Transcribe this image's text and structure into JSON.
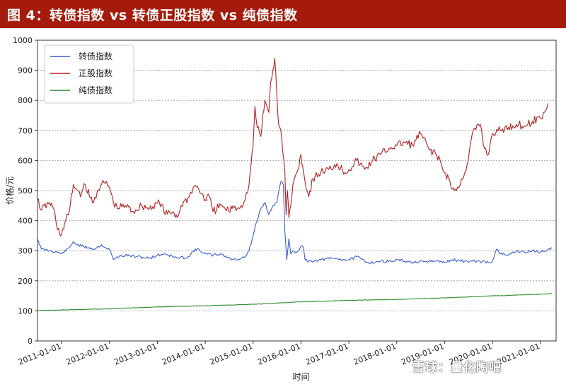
{
  "header": {
    "title": "图 4：转债指数 vs 转债正股指数 vs 纯债指数"
  },
  "watermark": {
    "text": "雪球：量化陶吧"
  },
  "chart_data": {
    "type": "line",
    "title": "图 4：转债指数 vs 转债正股指数 vs 纯债指数",
    "xlabel": "时间",
    "ylabel": "价格/元",
    "ylim": [
      0,
      1000
    ],
    "xlim": [
      "2010-07-01",
      "2021-05-01"
    ],
    "yticks": [
      0,
      100,
      200,
      300,
      400,
      500,
      600,
      700,
      800,
      900,
      1000
    ],
    "xticks": [
      "2011-01-01",
      "2012-01-01",
      "2013-01-01",
      "2014-01-01",
      "2015-01-01",
      "2016-01-01",
      "2017-01-01",
      "2018-01-01",
      "2019-01-01",
      "2020-01-01",
      "2021-01-01"
    ],
    "grid": true,
    "legend_position": "top-left",
    "series": [
      {
        "name": "转债指数",
        "color": "#3b5fd4",
        "points": [
          [
            "2010-07-01",
            340
          ],
          [
            "2010-08-01",
            305
          ],
          [
            "2010-10-01",
            300
          ],
          [
            "2010-12-01",
            295
          ],
          [
            "2011-01-01",
            290
          ],
          [
            "2011-03-01",
            310
          ],
          [
            "2011-04-01",
            330
          ],
          [
            "2011-05-01",
            320
          ],
          [
            "2011-06-01",
            315
          ],
          [
            "2011-08-01",
            310
          ],
          [
            "2011-09-01",
            305
          ],
          [
            "2011-11-01",
            320
          ],
          [
            "2011-12-01",
            310
          ],
          [
            "2012-01-01",
            305
          ],
          [
            "2012-02-01",
            270
          ],
          [
            "2012-03-01",
            280
          ],
          [
            "2012-05-01",
            285
          ],
          [
            "2012-08-01",
            280
          ],
          [
            "2012-11-01",
            275
          ],
          [
            "2013-01-01",
            285
          ],
          [
            "2013-03-01",
            290
          ],
          [
            "2013-06-01",
            275
          ],
          [
            "2013-09-01",
            280
          ],
          [
            "2013-10-01",
            300
          ],
          [
            "2013-11-01",
            305
          ],
          [
            "2014-01-01",
            290
          ],
          [
            "2014-03-01",
            285
          ],
          [
            "2014-05-01",
            290
          ],
          [
            "2014-07-01",
            275
          ],
          [
            "2014-08-01",
            270
          ],
          [
            "2014-10-01",
            275
          ],
          [
            "2014-11-01",
            280
          ],
          [
            "2014-12-01",
            300
          ],
          [
            "2015-01-01",
            350
          ],
          [
            "2015-02-01",
            400
          ],
          [
            "2015-03-01",
            440
          ],
          [
            "2015-04-01",
            460
          ],
          [
            "2015-05-01",
            420
          ],
          [
            "2015-06-01",
            450
          ],
          [
            "2015-07-01",
            460
          ],
          [
            "2015-08-01",
            530
          ],
          [
            "2015-08-20",
            520
          ],
          [
            "2015-09-01",
            360
          ],
          [
            "2015-09-15",
            270
          ],
          [
            "2015-10-01",
            340
          ],
          [
            "2015-10-15",
            290
          ],
          [
            "2015-11-01",
            300
          ],
          [
            "2015-12-01",
            295
          ],
          [
            "2016-01-01",
            315
          ],
          [
            "2016-01-20",
            310
          ],
          [
            "2016-02-01",
            270
          ],
          [
            "2016-03-01",
            265
          ],
          [
            "2016-06-01",
            270
          ],
          [
            "2016-09-01",
            275
          ],
          [
            "2016-12-01",
            270
          ],
          [
            "2017-01-01",
            270
          ],
          [
            "2017-03-01",
            280
          ],
          [
            "2017-06-01",
            260
          ],
          [
            "2017-09-01",
            265
          ],
          [
            "2017-12-01",
            265
          ],
          [
            "2018-01-01",
            270
          ],
          [
            "2018-03-01",
            265
          ],
          [
            "2018-06-01",
            260
          ],
          [
            "2018-09-01",
            265
          ],
          [
            "2018-12-01",
            265
          ],
          [
            "2019-01-01",
            260
          ],
          [
            "2019-03-01",
            270
          ],
          [
            "2019-06-01",
            265
          ],
          [
            "2019-09-01",
            265
          ],
          [
            "2019-12-01",
            262
          ],
          [
            "2020-01-01",
            265
          ],
          [
            "2020-02-01",
            305
          ],
          [
            "2020-03-01",
            290
          ],
          [
            "2020-05-01",
            285
          ],
          [
            "2020-07-01",
            300
          ],
          [
            "2020-09-01",
            295
          ],
          [
            "2020-11-01",
            300
          ],
          [
            "2021-01-01",
            295
          ],
          [
            "2021-03-01",
            305
          ],
          [
            "2021-04-01",
            310
          ]
        ]
      },
      {
        "name": "正股指数",
        "color": "#b51f1f",
        "points": [
          [
            "2010-07-01",
            470
          ],
          [
            "2010-08-01",
            435
          ],
          [
            "2010-10-01",
            460
          ],
          [
            "2010-11-01",
            440
          ],
          [
            "2010-12-01",
            370
          ],
          [
            "2011-01-01",
            355
          ],
          [
            "2011-02-01",
            400
          ],
          [
            "2011-03-01",
            430
          ],
          [
            "2011-04-01",
            520
          ],
          [
            "2011-05-01",
            500
          ],
          [
            "2011-06-01",
            490
          ],
          [
            "2011-07-01",
            520
          ],
          [
            "2011-08-01",
            480
          ],
          [
            "2011-09-01",
            460
          ],
          [
            "2011-10-01",
            500
          ],
          [
            "2011-11-01",
            520
          ],
          [
            "2011-12-01",
            525
          ],
          [
            "2012-01-01",
            510
          ],
          [
            "2012-02-01",
            460
          ],
          [
            "2012-03-01",
            440
          ],
          [
            "2012-05-01",
            450
          ],
          [
            "2012-07-01",
            430
          ],
          [
            "2012-09-01",
            450
          ],
          [
            "2012-11-01",
            440
          ],
          [
            "2013-01-01",
            460
          ],
          [
            "2013-02-01",
            455
          ],
          [
            "2013-03-01",
            420
          ],
          [
            "2013-05-01",
            430
          ],
          [
            "2013-06-01",
            410
          ],
          [
            "2013-07-01",
            450
          ],
          [
            "2013-09-01",
            480
          ],
          [
            "2013-10-01",
            510
          ],
          [
            "2013-11-01",
            515
          ],
          [
            "2013-12-01",
            490
          ],
          [
            "2014-01-01",
            470
          ],
          [
            "2014-02-01",
            480
          ],
          [
            "2014-03-01",
            430
          ],
          [
            "2014-05-01",
            450
          ],
          [
            "2014-06-01",
            440
          ],
          [
            "2014-07-01",
            430
          ],
          [
            "2014-08-01",
            450
          ],
          [
            "2014-09-01",
            440
          ],
          [
            "2014-10-01",
            450
          ],
          [
            "2014-11-01",
            470
          ],
          [
            "2014-12-01",
            520
          ],
          [
            "2015-01-01",
            650
          ],
          [
            "2015-01-15",
            780
          ],
          [
            "2015-02-01",
            710
          ],
          [
            "2015-03-01",
            680
          ],
          [
            "2015-04-01",
            800
          ],
          [
            "2015-05-01",
            760
          ],
          [
            "2015-05-15",
            860
          ],
          [
            "2015-06-01",
            900
          ],
          [
            "2015-06-15",
            940
          ],
          [
            "2015-07-01",
            820
          ],
          [
            "2015-07-15",
            720
          ],
          [
            "2015-08-01",
            700
          ],
          [
            "2015-08-15",
            630
          ],
          [
            "2015-09-01",
            560
          ],
          [
            "2015-09-10",
            420
          ],
          [
            "2015-09-20",
            500
          ],
          [
            "2015-10-01",
            410
          ],
          [
            "2015-10-15",
            450
          ],
          [
            "2015-11-01",
            520
          ],
          [
            "2015-12-01",
            560
          ],
          [
            "2016-01-01",
            620
          ],
          [
            "2016-01-15",
            580
          ],
          [
            "2016-02-01",
            530
          ],
          [
            "2016-03-01",
            480
          ],
          [
            "2016-04-01",
            540
          ],
          [
            "2016-06-01",
            560
          ],
          [
            "2016-08-01",
            570
          ],
          [
            "2016-10-01",
            590
          ],
          [
            "2016-12-01",
            560
          ],
          [
            "2017-01-01",
            570
          ],
          [
            "2017-03-01",
            600
          ],
          [
            "2017-05-01",
            570
          ],
          [
            "2017-07-01",
            600
          ],
          [
            "2017-09-01",
            620
          ],
          [
            "2017-11-01",
            640
          ],
          [
            "2018-01-01",
            650
          ],
          [
            "2018-03-01",
            660
          ],
          [
            "2018-05-01",
            650
          ],
          [
            "2018-07-01",
            690
          ],
          [
            "2018-09-01",
            640
          ],
          [
            "2018-11-01",
            620
          ],
          [
            "2019-01-01",
            560
          ],
          [
            "2019-02-01",
            540
          ],
          [
            "2019-03-01",
            505
          ],
          [
            "2019-04-01",
            500
          ],
          [
            "2019-05-01",
            520
          ],
          [
            "2019-07-01",
            600
          ],
          [
            "2019-08-01",
            690
          ],
          [
            "2019-10-01",
            720
          ],
          [
            "2019-11-01",
            640
          ],
          [
            "2019-12-01",
            620
          ],
          [
            "2020-01-01",
            690
          ],
          [
            "2020-03-01",
            700
          ],
          [
            "2020-05-01",
            710
          ],
          [
            "2020-07-01",
            720
          ],
          [
            "2020-09-01",
            715
          ],
          [
            "2020-11-01",
            730
          ],
          [
            "2021-01-01",
            740
          ],
          [
            "2021-02-01",
            760
          ],
          [
            "2021-03-01",
            790
          ]
        ]
      },
      {
        "name": "纯债指数",
        "color": "#2d8a2d",
        "points": [
          [
            "2010-07-01",
            101
          ],
          [
            "2011-01-01",
            103
          ],
          [
            "2012-01-01",
            107
          ],
          [
            "2013-01-01",
            113
          ],
          [
            "2014-01-01",
            117
          ],
          [
            "2015-01-01",
            122
          ],
          [
            "2016-01-01",
            130
          ],
          [
            "2017-01-01",
            135
          ],
          [
            "2018-01-01",
            138
          ],
          [
            "2019-01-01",
            143
          ],
          [
            "2020-01-01",
            150
          ],
          [
            "2021-01-01",
            155
          ],
          [
            "2021-04-01",
            158
          ]
        ]
      }
    ]
  }
}
